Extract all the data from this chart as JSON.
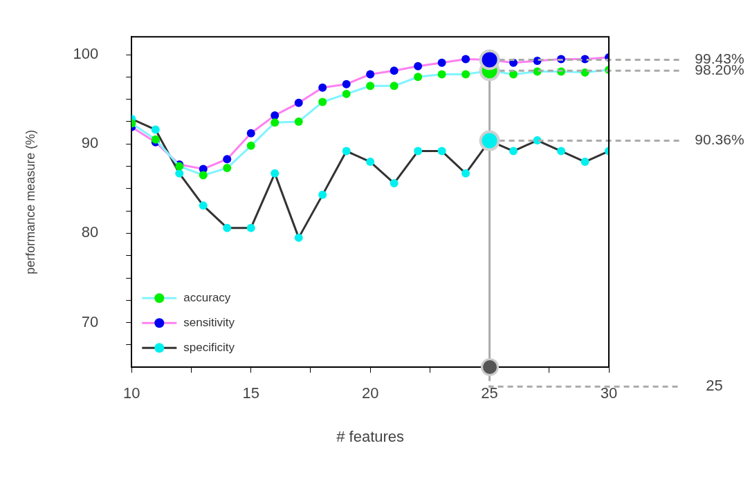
{
  "chart_data": {
    "type": "line",
    "xlabel": "# features",
    "ylabel": "performance measure (%)",
    "x": [
      10,
      11,
      12,
      13,
      14,
      15,
      16,
      17,
      18,
      19,
      20,
      21,
      22,
      23,
      24,
      25,
      26,
      27,
      28,
      29,
      30
    ],
    "series": [
      {
        "name": "accuracy",
        "color": "#80f4ff",
        "colors": [
          "#00ee00",
          "#00ee00",
          "#00ee00",
          "#00ee00",
          "#00ee00",
          "#00ee00",
          "#00ee00",
          "#00ee00",
          "#00ee00",
          "#00ee00",
          "#00ee00",
          "#00ee00",
          "#00ee00",
          "#00ee00",
          "#00ee00",
          "#00ee00",
          "#00ee00",
          "#00ee00",
          "#00ee00",
          "#00ee00",
          "#00ee00"
        ],
        "values": [
          92.3,
          90.5,
          87.5,
          86.5,
          87.3,
          89.8,
          92.4,
          92.5,
          94.7,
          95.6,
          96.5,
          96.5,
          97.5,
          97.8,
          97.8,
          98.2,
          97.8,
          98.1,
          98.1,
          98.0,
          98.3
        ]
      },
      {
        "name": "sensitivity",
        "color": "#ff80f0",
        "colors": [
          "#0000f0",
          "#0000f0",
          "#0000f0",
          "#0000f0",
          "#0000f0",
          "#0000f0",
          "#0000f0",
          "#0000f0",
          "#0000f0",
          "#0000f0",
          "#0000f0",
          "#0000f0",
          "#0000f0",
          "#0000f0",
          "#0000f0",
          "#0000f0",
          "#0000f0",
          "#0000f0",
          "#0000f0",
          "#0000f0",
          "#0000f0"
        ],
        "values": [
          91.9,
          90.2,
          87.7,
          87.2,
          88.3,
          91.2,
          93.2,
          94.6,
          96.3,
          96.7,
          97.8,
          98.2,
          98.7,
          99.1,
          99.5,
          99.43,
          99.1,
          99.3,
          99.5,
          99.5,
          99.7
        ]
      },
      {
        "name": "specificity",
        "color": "#333333",
        "colors": [
          "#00f0f0",
          "#00f0f0",
          "#00f0f0",
          "#00f0f0",
          "#00f0f0",
          "#00f0f0",
          "#00f0f0",
          "#00f0f0",
          "#00f0f0",
          "#00f0f0",
          "#00f0f0",
          "#00f0f0",
          "#00f0f0",
          "#00f0f0",
          "#00f0f0",
          "#00f0f0",
          "#00f0f0",
          "#00f0f0",
          "#00f0f0",
          "#00f0f0",
          "#00f0f0"
        ],
        "values": [
          92.8,
          91.6,
          86.7,
          83.1,
          80.6,
          80.6,
          86.7,
          79.5,
          84.3,
          89.2,
          88.0,
          85.6,
          89.2,
          89.2,
          86.7,
          90.36,
          89.2,
          90.4,
          89.2,
          88.0,
          89.2
        ]
      }
    ],
    "xlim": [
      10,
      30
    ],
    "xticks": [
      10,
      {
        "value": 12.5,
        "label": null
      },
      15,
      {
        "value": 17.5,
        "label": null
      },
      20,
      {
        "value": 22.5,
        "label": null
      },
      25,
      {
        "value": 27.5,
        "label": null
      },
      30
    ],
    "ylim": [
      65,
      102
    ],
    "yticks": [
      {
        "value": 67.5,
        "label": null
      },
      70,
      {
        "value": 72.5,
        "label": null
      },
      {
        "value": 75,
        "label": null
      },
      {
        "value": 77.5,
        "label": null
      },
      80,
      {
        "value": 82.5,
        "label": null
      },
      {
        "value": 85,
        "label": null
      },
      {
        "value": 87.5,
        "label": null
      },
      90,
      {
        "value": 92.5,
        "label": null
      },
      {
        "value": 95,
        "label": null
      },
      {
        "value": 97.5,
        "label": null
      },
      100
    ],
    "ref_lines": [
      {
        "axis": "x",
        "value": 25,
        "color": "#aaaaaa"
      }
    ],
    "annotations": [
      "98.20%",
      "99.43%",
      "90.36%",
      "25"
    ],
    "legend": "bottom left",
    "marker": "circle",
    "grid": false
  }
}
